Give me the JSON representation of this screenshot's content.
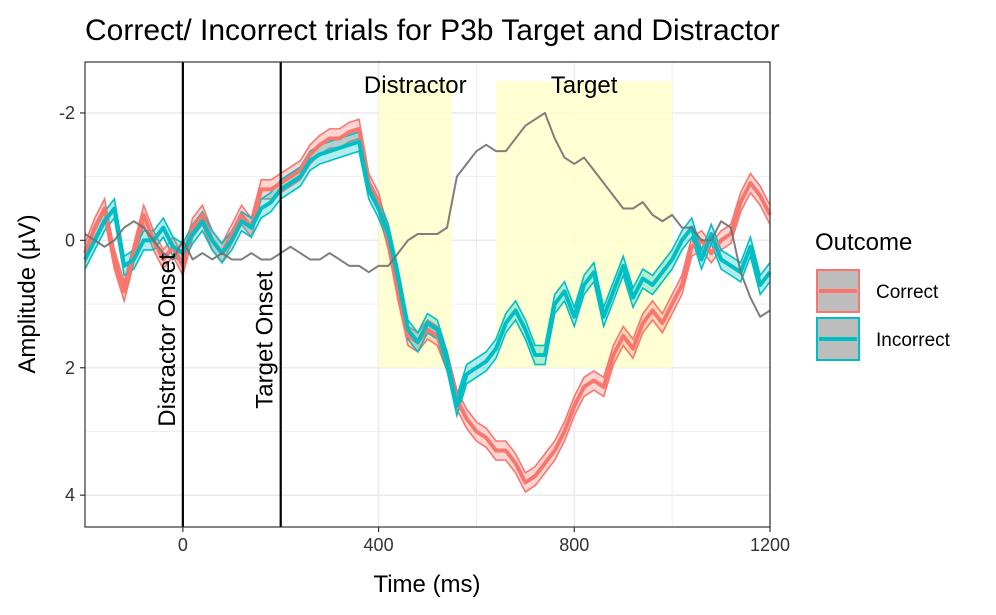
{
  "chart_data": {
    "type": "line",
    "title": "Correct/ Incorrect trials for P3b Target and Distractor",
    "xlabel": "Time (ms)",
    "ylabel": "Amplitude (µV)",
    "xlim": [
      -200,
      1200
    ],
    "ylim": [
      -2.8,
      4.5
    ],
    "y_reversed": true,
    "x_ticks": [
      0,
      400,
      800,
      1200
    ],
    "y_ticks": [
      -2,
      0,
      2,
      4
    ],
    "grid": true,
    "legend": {
      "title": "Outcome",
      "placement": "right",
      "entries": [
        {
          "label": "Correct",
          "color": "#F8766D"
        },
        {
          "label": "Incorrect",
          "color": "#00BFC4"
        }
      ]
    },
    "vlines": [
      {
        "x": 0,
        "label": "Distractor Onset"
      },
      {
        "x": 200,
        "label": "Target Onset"
      }
    ],
    "windows": [
      {
        "label": "Distractor",
        "x": [
          400,
          550
        ],
        "y": [
          -2.5,
          2
        ],
        "color": "#FFFFCC"
      },
      {
        "label": "Target",
        "x": [
          640,
          1000
        ],
        "y": [
          -2.5,
          2
        ],
        "color": "#FFFFCC"
      }
    ],
    "x": [
      -200,
      -180,
      -160,
      -140,
      -120,
      -100,
      -80,
      -60,
      -40,
      -20,
      0,
      20,
      40,
      60,
      80,
      100,
      120,
      140,
      160,
      180,
      200,
      220,
      240,
      260,
      280,
      300,
      320,
      340,
      360,
      380,
      400,
      420,
      440,
      460,
      480,
      500,
      520,
      540,
      560,
      580,
      600,
      620,
      640,
      660,
      680,
      700,
      720,
      740,
      760,
      780,
      800,
      820,
      840,
      860,
      880,
      900,
      920,
      940,
      960,
      980,
      1000,
      1020,
      1040,
      1060,
      1080,
      1100,
      1120,
      1140,
      1160,
      1180,
      1200
    ],
    "series": [
      {
        "name": "Correct",
        "color": "#F8766D",
        "band_halfwidth": 0.15,
        "values": [
          0.2,
          -0.2,
          -0.5,
          0.3,
          0.8,
          0.2,
          -0.4,
          0.0,
          0.3,
          0.1,
          0.4,
          -0.2,
          -0.4,
          0.0,
          0.2,
          -0.1,
          -0.4,
          -0.2,
          -0.8,
          -0.8,
          -0.9,
          -1.0,
          -1.1,
          -1.35,
          -1.5,
          -1.6,
          -1.6,
          -1.7,
          -1.75,
          -0.9,
          -0.6,
          0.0,
          0.8,
          1.5,
          1.6,
          1.4,
          1.5,
          1.9,
          2.5,
          2.8,
          3.0,
          3.1,
          3.3,
          3.3,
          3.5,
          3.8,
          3.7,
          3.5,
          3.3,
          3.0,
          2.6,
          2.3,
          2.2,
          2.3,
          1.8,
          1.5,
          1.7,
          1.3,
          1.1,
          1.3,
          1.0,
          0.7,
          0.1,
          0.0,
          0.2,
          0.0,
          -0.1,
          -0.6,
          -0.9,
          -0.7,
          -0.4
        ]
      },
      {
        "name": "Incorrect",
        "color": "#00BFC4",
        "band_halfwidth": 0.15,
        "values": [
          0.3,
          0.0,
          -0.3,
          -0.5,
          0.4,
          0.3,
          0.0,
          0.0,
          -0.2,
          0.1,
          0.2,
          -0.1,
          -0.3,
          0.0,
          0.2,
          0.0,
          -0.3,
          -0.2,
          -0.5,
          -0.6,
          -0.8,
          -0.9,
          -1.0,
          -1.25,
          -1.35,
          -1.4,
          -1.45,
          -1.5,
          -1.55,
          -0.8,
          -0.5,
          -0.1,
          0.6,
          1.4,
          1.6,
          1.3,
          1.4,
          1.9,
          2.6,
          2.1,
          2.0,
          1.9,
          1.7,
          1.3,
          1.1,
          1.4,
          1.8,
          1.8,
          1.0,
          0.8,
          1.2,
          0.7,
          0.5,
          1.2,
          0.8,
          0.4,
          0.9,
          0.6,
          0.7,
          0.5,
          0.3,
          0.0,
          -0.2,
          0.3,
          -0.1,
          0.3,
          0.4,
          0.5,
          0.1,
          0.7,
          0.5
        ]
      },
      {
        "color": "#707070",
        "band_halfwidth": 0,
        "values": [
          -0.1,
          0.0,
          0.1,
          0.0,
          -0.2,
          -0.3,
          -0.2,
          0.0,
          0.2,
          0.3,
          0.0,
          0.3,
          0.2,
          0.3,
          0.2,
          0.3,
          0.3,
          0.2,
          0.3,
          0.3,
          0.2,
          0.1,
          0.2,
          0.3,
          0.3,
          0.2,
          0.3,
          0.4,
          0.4,
          0.5,
          0.4,
          0.4,
          0.2,
          0.0,
          -0.1,
          -0.1,
          -0.1,
          -0.2,
          -1.0,
          -1.2,
          -1.4,
          -1.5,
          -1.4,
          -1.4,
          -1.6,
          -1.8,
          -1.9,
          -2.0,
          -1.6,
          -1.3,
          -1.2,
          -1.3,
          -1.1,
          -0.9,
          -0.7,
          -0.5,
          -0.5,
          -0.6,
          -0.4,
          -0.3,
          -0.4,
          -0.2,
          -0.2,
          0.0,
          0.0,
          -0.3,
          -0.2,
          0.5,
          0.9,
          1.2,
          1.1
        ]
      }
    ]
  }
}
